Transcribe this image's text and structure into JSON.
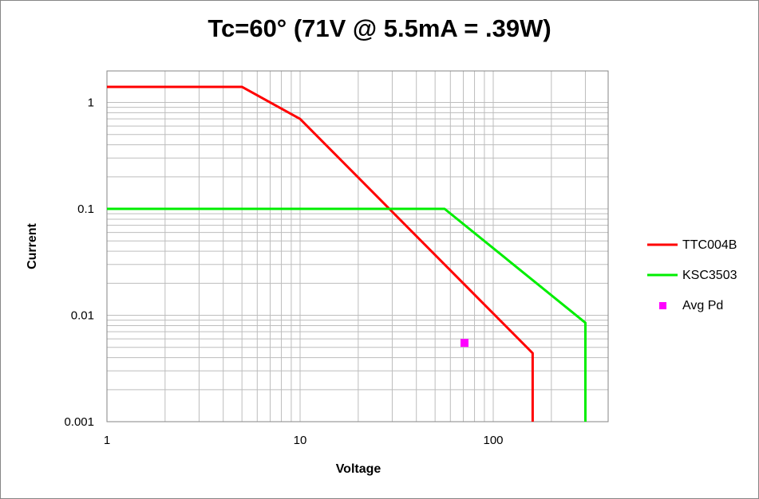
{
  "chart_data": {
    "type": "line",
    "title": "Tc=60° (71V @ 5.5mA = .39W)",
    "xlabel": "Voltage",
    "ylabel": "Current",
    "xscale": "log",
    "yscale": "log",
    "xlim": [
      1,
      1000
    ],
    "ylim": [
      0.001,
      2
    ],
    "grid": true,
    "legend_position": "right",
    "x_ticks": [
      1,
      10,
      100
    ],
    "x_tick_labels": [
      "1",
      "10",
      "100"
    ],
    "y_ticks": [
      0.001,
      0.01,
      0.1,
      1
    ],
    "y_tick_labels": [
      "0.001",
      "0.01",
      "0.1",
      "1"
    ],
    "series": [
      {
        "name": "TTC004B",
        "kind": "line",
        "color": "#ff0000",
        "x": [
          1,
          5,
          10,
          160,
          160
        ],
        "y": [
          1.4,
          1.4,
          0.7,
          0.0044,
          0.001
        ]
      },
      {
        "name": "KSC3503",
        "kind": "line",
        "color": "#00ee00",
        "x": [
          1,
          56,
          300,
          300
        ],
        "y": [
          0.1,
          0.1,
          0.0085,
          0.001
        ]
      },
      {
        "name": "Avg Pd",
        "kind": "marker",
        "color": "#ff00ff",
        "x": [
          71
        ],
        "y": [
          0.0055
        ]
      }
    ]
  }
}
